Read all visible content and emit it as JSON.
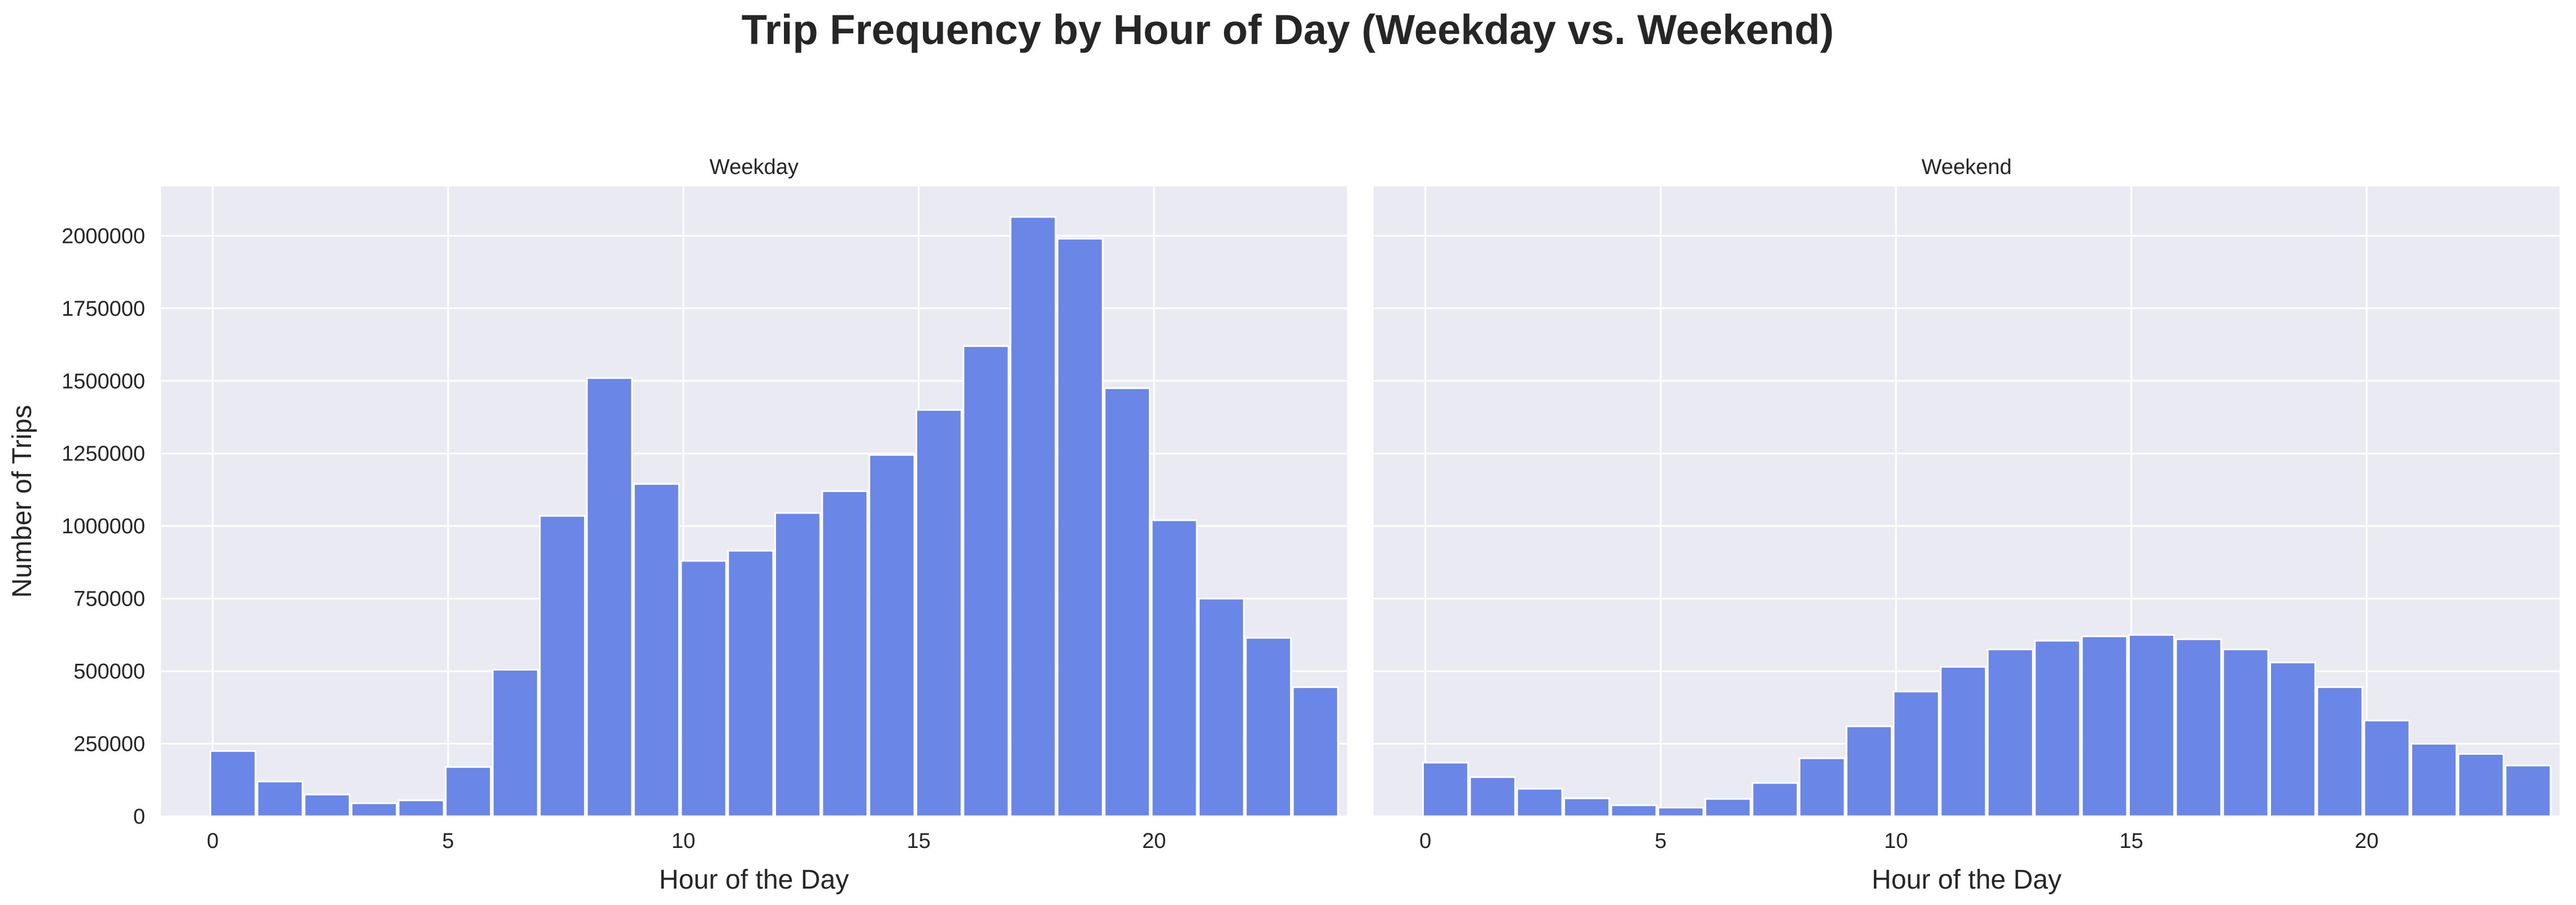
{
  "figure": {
    "title": "Trip Frequency by Hour of Day (Weekday vs. Weekend)"
  },
  "chart_data": [
    {
      "type": "bar",
      "panel_title": "Weekday",
      "x": [
        0,
        1,
        2,
        3,
        4,
        5,
        6,
        7,
        8,
        9,
        10,
        11,
        12,
        13,
        14,
        15,
        16,
        17,
        18,
        19,
        20,
        21,
        22,
        23
      ],
      "values": [
        225000,
        120000,
        75000,
        45000,
        55000,
        170000,
        505000,
        1035000,
        1510000,
        1145000,
        880000,
        915000,
        1045000,
        1120000,
        1245000,
        1400000,
        1620000,
        2065000,
        1990000,
        1475000,
        1020000,
        750000,
        615000,
        445000
      ],
      "xlabel": "Hour of the Day",
      "ylabel": "Number of Trips",
      "xlim": [
        -1.1,
        24.1
      ],
      "ylim": [
        0,
        2170000
      ],
      "xticks": [
        0,
        5,
        10,
        15,
        20
      ],
      "xtick_labels": [
        "0",
        "5",
        "10",
        "15",
        "20"
      ],
      "yticks": [
        0,
        250000,
        500000,
        750000,
        1000000,
        1250000,
        1500000,
        1750000,
        2000000
      ],
      "ytick_labels": [
        "0",
        "250000",
        "500000",
        "750000",
        "1000000",
        "1250000",
        "1500000",
        "1750000",
        "2000000"
      ],
      "grid": true
    },
    {
      "type": "bar",
      "panel_title": "Weekend",
      "x": [
        0,
        1,
        2,
        3,
        4,
        5,
        6,
        7,
        8,
        9,
        10,
        11,
        12,
        13,
        14,
        15,
        16,
        17,
        18,
        19,
        20,
        21,
        22,
        23
      ],
      "values": [
        185000,
        135000,
        95000,
        62000,
        38000,
        30000,
        60000,
        115000,
        200000,
        310000,
        430000,
        515000,
        575000,
        605000,
        620000,
        625000,
        610000,
        575000,
        530000,
        445000,
        330000,
        250000,
        215000,
        175000
      ],
      "xlabel": "Hour of the Day",
      "ylabel": "",
      "xlim": [
        -1.1,
        24.1
      ],
      "ylim": [
        0,
        2170000
      ],
      "xticks": [
        0,
        5,
        10,
        15,
        20
      ],
      "xtick_labels": [
        "0",
        "5",
        "10",
        "15",
        "20"
      ],
      "yticks": [
        0,
        250000,
        500000,
        750000,
        1000000,
        1250000,
        1500000,
        1750000,
        2000000
      ],
      "ytick_labels": [],
      "grid": true
    }
  ],
  "style": {
    "bar_color": "#6a86e6",
    "bar_edge": "#ffffff",
    "panel_bg": "#eaeaf2",
    "grid_color": "#ffffff",
    "text_color": "#262626",
    "title_color": "#262626"
  }
}
